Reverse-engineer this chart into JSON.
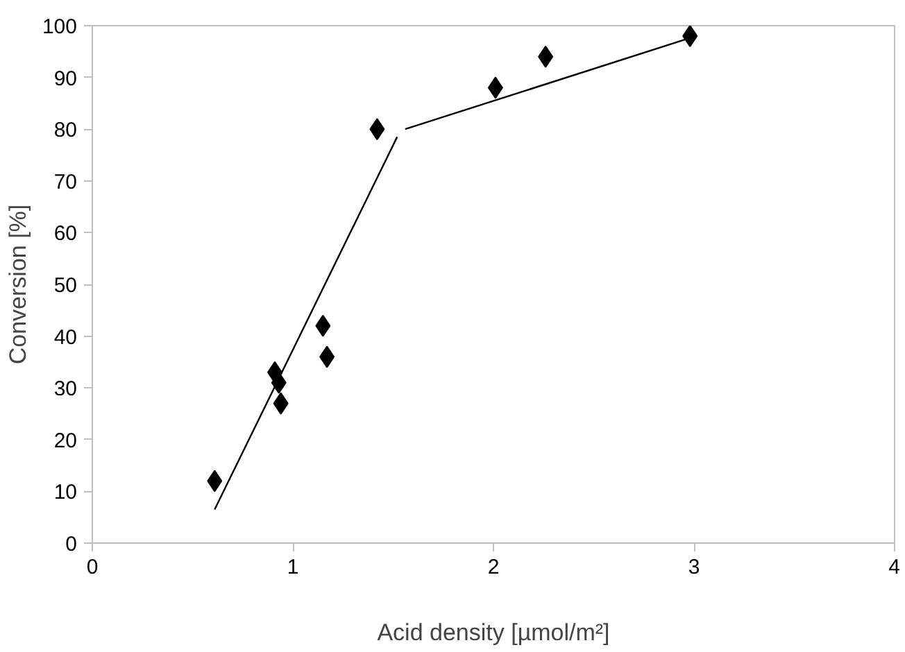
{
  "chart_data": {
    "type": "scatter",
    "xlabel": "Acid density [µmol/m²]",
    "ylabel": "Conversion [%]",
    "xlim": [
      0,
      4
    ],
    "ylim": [
      0,
      100
    ],
    "xticks": [
      0,
      1,
      2,
      3,
      4
    ],
    "yticks": [
      0,
      10,
      20,
      30,
      40,
      50,
      60,
      70,
      80,
      90,
      100
    ],
    "grid": false,
    "series": [
      {
        "marker": "diamond",
        "color": "#000000",
        "x": [
          0.61,
          0.91,
          0.93,
          0.94,
          1.15,
          1.17,
          1.42,
          2.01,
          2.26,
          2.98
        ],
        "values": [
          12,
          33,
          31,
          27,
          42,
          36,
          80,
          88,
          94,
          98
        ]
      },
      {
        "type": "line",
        "color": "#000000",
        "x": [
          0.61,
          1.52
        ],
        "values": [
          6.5,
          78.5
        ]
      },
      {
        "type": "line",
        "color": "#000000",
        "x": [
          1.56,
          2.97
        ],
        "values": [
          80,
          97.5
        ]
      }
    ]
  }
}
